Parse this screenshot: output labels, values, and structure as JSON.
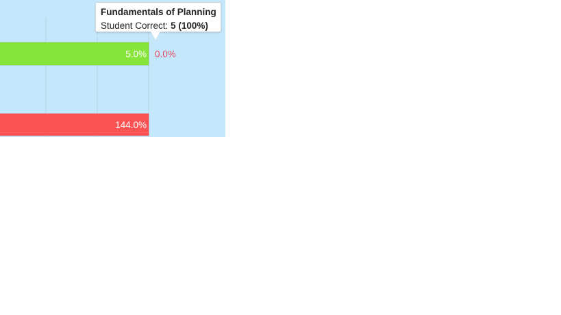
{
  "chart_data": {
    "type": "bar",
    "orientation": "horizontal",
    "series": [
      {
        "name": "",
        "values": [
          5.0,
          144.0
        ],
        "color": "#82e637"
      }
    ],
    "bars": [
      {
        "value_label": "5.0%",
        "color": "#86e43a",
        "side_label": "0.0%"
      },
      {
        "value_label": "144.0%",
        "color": "#fb5353",
        "side_label": ""
      }
    ],
    "grid": true,
    "legend": "none"
  },
  "tooltip": {
    "title": "Fundamentals of Planning",
    "line_label": "Student Correct:",
    "line_value": "5 (100%)"
  },
  "colors": {
    "background": "#c5e7fb",
    "gridline": "#b4d3e4",
    "side_label": "#e74b62",
    "bar_green": "#86e43a",
    "bar_red": "#fb5353"
  }
}
